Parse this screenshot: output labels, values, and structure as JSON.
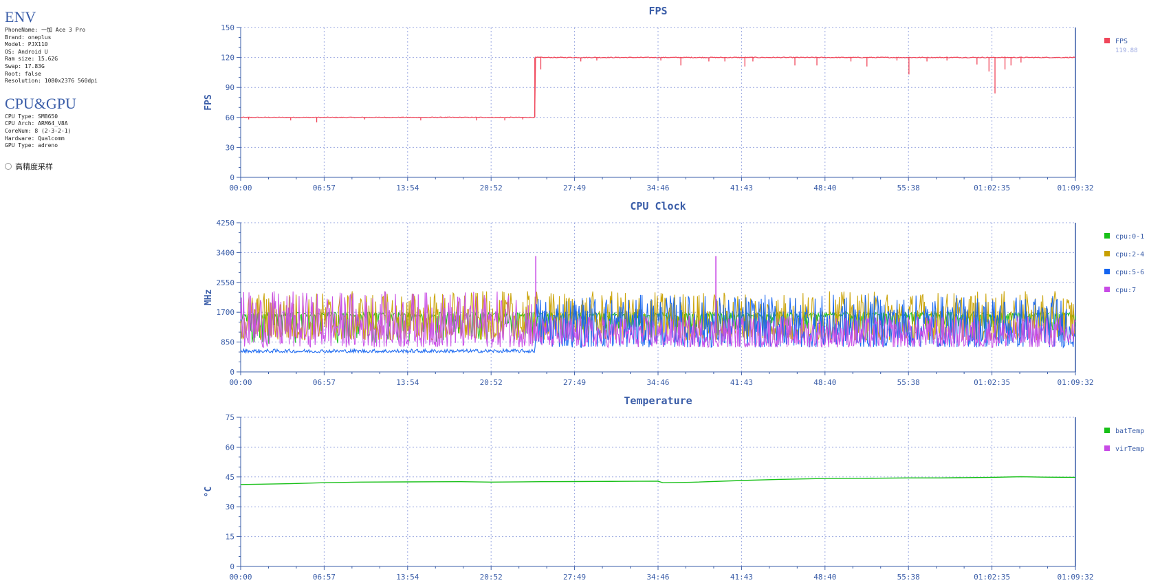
{
  "env": {
    "title": "ENV",
    "lines": [
      "PhoneName: 一加 Ace 3 Pro",
      "Brand: oneplus",
      "Model: PJX110",
      "OS: Android U",
      "Ram size: 15.62G",
      "Swap: 17.83G",
      "Root: false",
      "Resolution: 1080x2376 560dpi"
    ]
  },
  "cpugpu": {
    "title": "CPU&GPU",
    "lines": [
      "CPU Type: SM8650",
      "CPU Arch: ARM64_V8A",
      "CoreNum: 8 (2-3-2-1)",
      "Hardware: Qualcomm",
      "GPU Type: adreno"
    ]
  },
  "high_precision_label": "高精度采样",
  "chart_data": [
    {
      "type": "line",
      "title": "FPS",
      "xlabel": "",
      "ylabel": "FPS",
      "x_ticks": [
        "00:00",
        "06:57",
        "13:54",
        "20:52",
        "27:49",
        "34:46",
        "41:43",
        "48:40",
        "55:38",
        "01:02:35",
        "01:09:32"
      ],
      "x_range_seconds": [
        0,
        4172
      ],
      "ylim": [
        0,
        150
      ],
      "y_ticks": [
        0,
        30,
        60,
        90,
        120,
        150
      ],
      "grid": true,
      "legend_position": "right",
      "series": [
        {
          "name": "FPS",
          "color": "#f0465a",
          "current_value": "119.88",
          "points": [
            [
              0,
              60
            ],
            [
              1470,
              60
            ],
            [
              1470,
              120
            ],
            [
              4172,
              120
            ]
          ],
          "dips": [
            [
              40,
              58
            ],
            [
              250,
              57
            ],
            [
              380,
              55
            ],
            [
              620,
              58
            ],
            [
              900,
              57
            ],
            [
              1180,
              57
            ],
            [
              1320,
              57
            ],
            [
              1410,
              58
            ],
            [
              1500,
              108
            ],
            [
              1700,
              116
            ],
            [
              1780,
              117
            ],
            [
              2100,
              117
            ],
            [
              2200,
              112
            ],
            [
              2340,
              116
            ],
            [
              2420,
              116
            ],
            [
              2520,
              111
            ],
            [
              2560,
              116
            ],
            [
              2770,
              112
            ],
            [
              2880,
              112
            ],
            [
              3050,
              116
            ],
            [
              3130,
              111
            ],
            [
              3280,
              117
            ],
            [
              3340,
              103
            ],
            [
              3430,
              116
            ],
            [
              3530,
              117
            ],
            [
              3680,
              113
            ],
            [
              3740,
              106
            ],
            [
              3770,
              84
            ],
            [
              3820,
              108
            ],
            [
              3850,
              112
            ],
            [
              3900,
              115
            ]
          ]
        }
      ]
    },
    {
      "type": "line",
      "title": "CPU Clock",
      "xlabel": "",
      "ylabel": "MHz",
      "x_ticks": [
        "00:00",
        "06:57",
        "13:54",
        "20:52",
        "27:49",
        "34:46",
        "41:43",
        "48:40",
        "55:38",
        "01:02:35",
        "01:09:32"
      ],
      "x_range_seconds": [
        0,
        4172
      ],
      "ylim": [
        0,
        4250
      ],
      "y_ticks": [
        0,
        850,
        1700,
        2550,
        3400,
        4250
      ],
      "grid": true,
      "legend_position": "right",
      "series": [
        {
          "name": "cpu:0-1",
          "color": "#18c018",
          "phase1": [
            800,
            1700
          ],
          "phase2": [
            1200,
            1700
          ]
        },
        {
          "name": "cpu:2-4",
          "color": "#c8a000",
          "phase1": [
            900,
            2300
          ],
          "phase2": [
            900,
            2300
          ]
        },
        {
          "name": "cpu:5-6",
          "color": "#1464f0",
          "phase1": [
            550,
            650
          ],
          "phase2": [
            700,
            2200
          ]
        },
        {
          "name": "cpu:7",
          "color": "#c84be6",
          "phase1": [
            700,
            2300
          ],
          "phase2": [
            700,
            1600
          ],
          "spikes": [
            [
              1475,
              3300
            ],
            [
              2375,
              3300
            ]
          ]
        }
      ],
      "phase_change_seconds": 1470
    },
    {
      "type": "line",
      "title": "Temperature",
      "xlabel": "",
      "ylabel": "°C",
      "x_ticks": [
        "00:00",
        "06:57",
        "13:54",
        "20:52",
        "27:49",
        "34:46",
        "41:43",
        "48:40",
        "55:38",
        "01:02:35",
        "01:09:32"
      ],
      "x_range_seconds": [
        0,
        4172
      ],
      "ylim": [
        0,
        75
      ],
      "y_ticks": [
        0,
        15,
        30,
        45,
        60,
        75
      ],
      "grid": true,
      "legend_position": "right",
      "series": [
        {
          "name": "batTemp",
          "color": "#18c018",
          "points": [
            [
              0,
              41.2
            ],
            [
              250,
              41.6
            ],
            [
              417,
              42.1
            ],
            [
              600,
              42.4
            ],
            [
              834,
              42.5
            ],
            [
              1100,
              42.6
            ],
            [
              1251,
              42.4
            ],
            [
              1500,
              42.6
            ],
            [
              1668,
              42.7
            ],
            [
              1900,
              42.8
            ],
            [
              2085,
              42.9
            ],
            [
              2110,
              42.1
            ],
            [
              2250,
              42.3
            ],
            [
              2502,
              43.2
            ],
            [
              2700,
              43.8
            ],
            [
              2919,
              44.2
            ],
            [
              3100,
              44.3
            ],
            [
              3336,
              44.5
            ],
            [
              3500,
              44.5
            ],
            [
              3753,
              44.8
            ],
            [
              3900,
              45.1
            ],
            [
              4000,
              44.9
            ],
            [
              4172,
              44.8
            ]
          ]
        },
        {
          "name": "virTemp",
          "color": "#c84be6",
          "points": []
        }
      ]
    }
  ]
}
